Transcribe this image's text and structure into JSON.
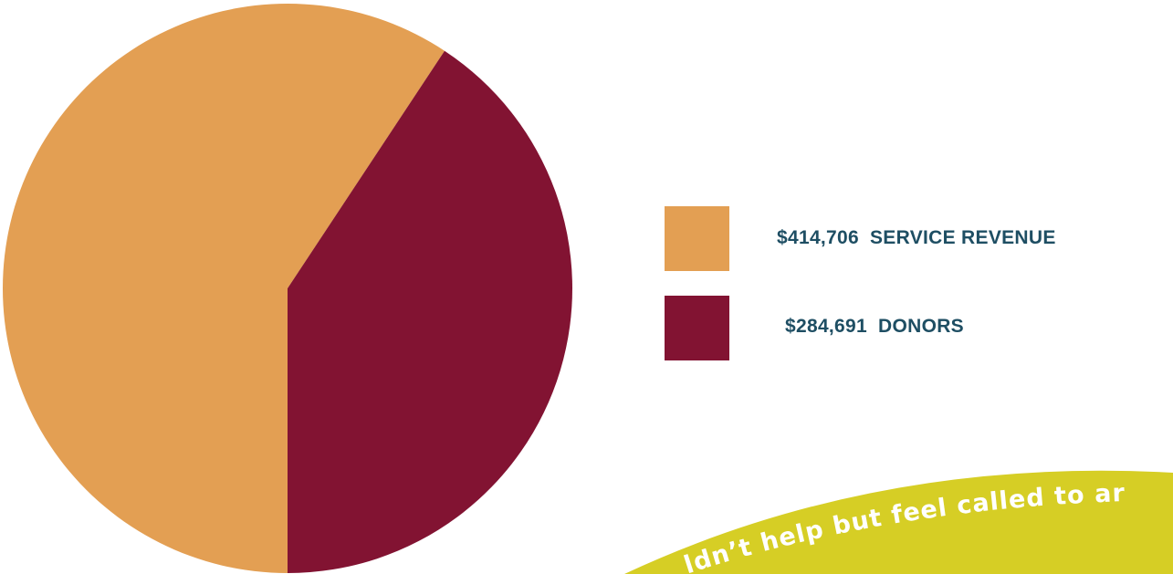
{
  "chart_data": {
    "type": "pie",
    "slices": [
      {
        "label": "SERVICE REVENUE",
        "amount_text": "$414,706",
        "value": 414706,
        "color": "#E39F53"
      },
      {
        "label": "DONORS",
        "amount_text": "$284,691",
        "value": 284691,
        "color": "#821332"
      }
    ],
    "legend_position": "right"
  },
  "banner": {
    "text": "ldn’t help but feel called to ar",
    "color": "#D6CE25",
    "text_color": "#FFFFFF"
  },
  "colors": {
    "legend_text": "#1E4E63"
  }
}
